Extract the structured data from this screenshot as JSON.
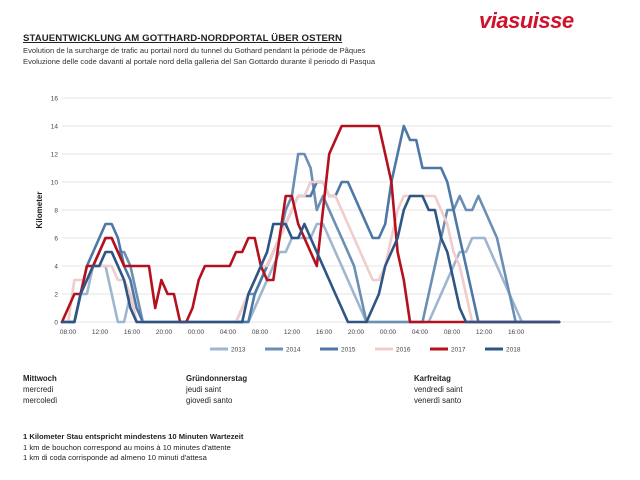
{
  "header": {
    "title": "STAUENTWICKLUNG AM GOTTHARD-NORDPORTAL ÜBER OSTERN",
    "subtitle_fr": "Evolution de la surcharge de trafic au portail nord du tunnel du Gothard pendant la période de Pâques",
    "subtitle_it": "Evoluzione delle code davanti al portale nord della galleria del San Gottardo durante il periodo di Pasqua",
    "logo_part1": "via",
    "logo_part2": "suisse"
  },
  "days": [
    {
      "de": "Mittwoch",
      "fr": "mercredi",
      "it": "mercoledì"
    },
    {
      "de": "Gründonnerstag",
      "fr": "jeudi saint",
      "it": "giovedì santo"
    },
    {
      "de": "Karfreitag",
      "fr": "vendredi saint",
      "it": "venerdì santo"
    }
  ],
  "note": {
    "de": "1 Kilometer Stau entspricht mindestens 10 Minuten Wartezeit",
    "fr": "1 km de bouchon correspond au moins à 10 minutes d'attente",
    "it": "1 km di coda corrisponde ad almeno 10 minuti d'attesa"
  },
  "chart_data": {
    "type": "line",
    "title": "",
    "xlabel": "",
    "ylabel": "Kilometer",
    "ylim": [
      0,
      16
    ],
    "yticks": [
      0,
      2,
      4,
      6,
      8,
      10,
      12,
      14,
      16
    ],
    "grid": "horizontal",
    "legend_position": "bottom",
    "x_tick_labels": [
      "08:00",
      "12:00",
      "16:00",
      "20:00",
      "00:00",
      "04:00",
      "08:00",
      "12:00",
      "16:00",
      "20:00",
      "00:00",
      "04:00",
      "08:00",
      "12:00",
      "16:00"
    ],
    "x": [
      0,
      1,
      2,
      3,
      4,
      5,
      6,
      7,
      8,
      9,
      10,
      11,
      12,
      13,
      14,
      15,
      16,
      17,
      18,
      19,
      20,
      21,
      22,
      23,
      24,
      25,
      26,
      27,
      28,
      29,
      30,
      31,
      32,
      33,
      34,
      35,
      36,
      37,
      38,
      39,
      40,
      41,
      42,
      43,
      44,
      45,
      46,
      47,
      48,
      49,
      50,
      51,
      52,
      53,
      54,
      55,
      56,
      57,
      58,
      59,
      60,
      61,
      62,
      63,
      64,
      65,
      66,
      67,
      68,
      69,
      70,
      71,
      72,
      73,
      74,
      75,
      76,
      77,
      78,
      79,
      80
    ],
    "series": [
      {
        "name": "2013",
        "color": "#9eb6cf",
        "values": [
          0,
          0,
          0,
          2,
          2,
          4,
          4,
          4,
          2,
          0,
          0,
          2,
          0,
          0,
          0,
          0,
          0,
          0,
          0,
          0,
          0,
          0,
          0,
          0,
          0,
          0,
          0,
          0,
          0,
          0,
          0,
          1,
          2,
          3,
          4,
          5,
          5,
          6,
          6,
          6,
          6,
          7,
          7,
          6,
          5,
          4,
          3,
          2,
          1,
          0,
          0,
          0,
          0,
          0,
          0,
          0,
          0,
          0,
          0,
          0,
          1,
          2,
          3,
          4,
          5,
          5,
          6,
          6,
          6,
          5,
          4,
          3,
          2,
          1,
          0,
          0,
          0,
          0,
          0,
          0,
          0
        ]
      },
      {
        "name": "2014",
        "color": "#6b8fb4",
        "values": [
          0,
          0,
          0,
          2,
          3,
          4,
          5,
          6,
          6,
          5,
          5,
          4,
          2,
          0,
          0,
          0,
          0,
          0,
          0,
          0,
          0,
          0,
          0,
          0,
          0,
          0,
          0,
          0,
          0,
          1,
          2,
          2,
          3,
          4,
          5,
          6,
          8,
          9,
          12,
          12,
          11,
          8,
          9,
          8,
          7,
          6,
          5,
          4,
          2,
          0,
          0,
          0,
          0,
          0,
          0,
          0,
          0,
          0,
          0,
          2,
          4,
          6,
          8,
          8,
          9,
          8,
          8,
          9,
          8,
          7,
          6,
          4,
          2,
          0,
          0,
          0,
          0,
          0,
          0,
          0,
          0
        ]
      },
      {
        "name": "2015",
        "color": "#4d77a6",
        "values": [
          0,
          0,
          0,
          2,
          4,
          5,
          6,
          7,
          7,
          6,
          4,
          3,
          1,
          0,
          0,
          0,
          0,
          0,
          0,
          0,
          0,
          0,
          0,
          0,
          0,
          0,
          0,
          0,
          0,
          0,
          0,
          2,
          3,
          4,
          5,
          6,
          7,
          8,
          9,
          9,
          9,
          10,
          10,
          9,
          9,
          10,
          10,
          9,
          8,
          7,
          6,
          6,
          7,
          10,
          12,
          14,
          13,
          13,
          11,
          11,
          11,
          11,
          10,
          8,
          6,
          4,
          2,
          0,
          0,
          0,
          0,
          0,
          0,
          0,
          0,
          0,
          0,
          0,
          0,
          0,
          0
        ]
      },
      {
        "name": "2016",
        "color": "#f1cccc",
        "values": [
          0,
          0,
          3,
          3,
          3,
          4,
          4,
          4,
          4,
          3,
          3,
          2,
          0,
          0,
          0,
          0,
          0,
          0,
          0,
          0,
          0,
          0,
          0,
          0,
          0,
          0,
          0,
          0,
          0,
          1,
          2,
          3,
          4,
          4,
          5,
          6,
          7,
          8,
          9,
          9,
          10,
          10,
          10,
          9,
          9,
          8,
          7,
          6,
          5,
          4,
          3,
          3,
          4,
          6,
          8,
          9,
          9,
          9,
          9,
          9,
          9,
          8,
          7,
          5,
          4,
          2,
          0,
          0,
          0,
          0,
          0,
          0,
          0,
          0,
          0,
          0,
          0,
          0,
          0,
          0,
          0
        ]
      },
      {
        "name": "2017",
        "color": "#b4101e",
        "values": [
          0,
          1,
          2,
          2,
          4,
          4,
          5,
          6,
          6,
          5,
          4,
          4,
          4,
          4,
          4,
          1,
          3,
          2,
          2,
          0,
          0,
          1,
          3,
          4,
          4,
          4,
          4,
          4,
          5,
          5,
          6,
          6,
          4,
          3,
          3,
          6,
          9,
          9,
          7,
          6,
          5,
          4,
          8,
          12,
          13,
          14,
          14,
          14,
          14,
          14,
          14,
          14,
          12,
          10,
          5,
          3,
          0,
          0,
          0,
          0,
          0,
          0,
          0,
          0,
          0,
          0,
          0,
          0,
          0,
          0,
          0,
          0,
          0,
          0,
          0,
          0,
          0,
          0,
          0,
          0,
          0
        ]
      },
      {
        "name": "2018",
        "color": "#2e5584",
        "values": [
          0,
          0,
          0,
          2,
          3,
          4,
          4,
          5,
          5,
          4,
          3,
          1,
          0,
          0,
          0,
          0,
          0,
          0,
          0,
          0,
          0,
          0,
          0,
          0,
          0,
          0,
          0,
          0,
          0,
          0,
          2,
          3,
          4,
          5,
          7,
          7,
          7,
          6,
          6,
          7,
          6,
          5,
          4,
          3,
          2,
          1,
          0,
          0,
          0,
          0,
          1,
          2,
          4,
          5,
          6,
          8,
          9,
          9,
          9,
          8,
          8,
          6,
          5,
          3,
          1,
          0,
          0,
          0,
          0,
          0,
          0,
          0,
          0,
          0,
          0,
          0,
          0,
          0,
          0,
          0,
          0
        ]
      }
    ]
  }
}
